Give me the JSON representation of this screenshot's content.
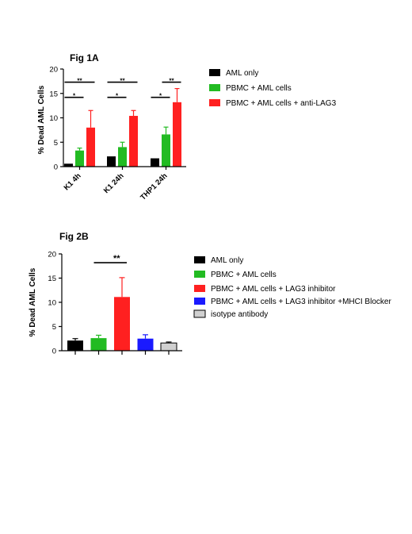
{
  "chart_data": [
    {
      "type": "bar",
      "title": "Fig 1A",
      "xlabel": "",
      "ylabel": "% Dead AML Cells",
      "ylim": [
        0,
        20
      ],
      "yticks": [
        0,
        5,
        10,
        15,
        20
      ],
      "categories": [
        "K1 4h",
        "K1 24h",
        "THP1 24h"
      ],
      "series": [
        {
          "name": "AML only",
          "color": "#000000",
          "values": [
            0.6,
            2.1,
            1.7
          ],
          "errors": [
            0,
            0,
            0
          ]
        },
        {
          "name": "PBMC + AML cells",
          "color": "#22bb22",
          "values": [
            3.3,
            4.0,
            6.6
          ],
          "errors": [
            0.5,
            1.0,
            1.5
          ]
        },
        {
          "name": "PBMC + AML cells + anti-LAG3",
          "color": "#ff2020",
          "values": [
            8.0,
            10.4,
            13.2
          ],
          "errors": [
            3.5,
            1.1,
            2.8
          ]
        }
      ],
      "significance": [
        {
          "category": 0,
          "from": 0,
          "to": 1,
          "label": "*",
          "y": 14.2
        },
        {
          "category": 0,
          "from": 0,
          "to": 2,
          "label": "**",
          "y": 17.3
        },
        {
          "category": 1,
          "from": 0,
          "to": 1,
          "label": "*",
          "y": 14.2
        },
        {
          "category": 1,
          "from": 0,
          "to": 2,
          "label": "**",
          "y": 17.3
        },
        {
          "category": 2,
          "from": 0,
          "to": 1,
          "label": "*",
          "y": 14.2
        },
        {
          "category": 2,
          "from": 1,
          "to": 2,
          "label": "**",
          "y": 17.3
        }
      ],
      "legend_position": "right"
    },
    {
      "type": "bar",
      "title": "Fig 2B",
      "xlabel": "",
      "ylabel": "% Dead AML Cells",
      "ylim": [
        0,
        20
      ],
      "yticks": [
        0,
        5,
        10,
        15,
        20
      ],
      "categories": [
        "",
        "",
        "",
        "",
        ""
      ],
      "series": [
        {
          "name": "AML only",
          "color": "#000000",
          "value": 2.1,
          "error": 0.4
        },
        {
          "name": "PBMC + AML cells",
          "color": "#22bb22",
          "value": 2.6,
          "error": 0.6
        },
        {
          "name": "PBMC + AML cells + LAG3 inhibitor",
          "color": "#ff2020",
          "value": 11.1,
          "error": 4.0
        },
        {
          "name": "PBMC + AML cells + LAG3 inhibitor +MHCI Blocker",
          "color": "#1a1aff",
          "value": 2.5,
          "error": 0.8
        },
        {
          "name": "isotype antibody",
          "color": "#d0d0d0",
          "value": 1.6,
          "error": 0.2
        }
      ],
      "significance": [
        {
          "from": 1,
          "to": 2,
          "label": "**",
          "y": 19.0
        }
      ],
      "legend_position": "right"
    }
  ]
}
